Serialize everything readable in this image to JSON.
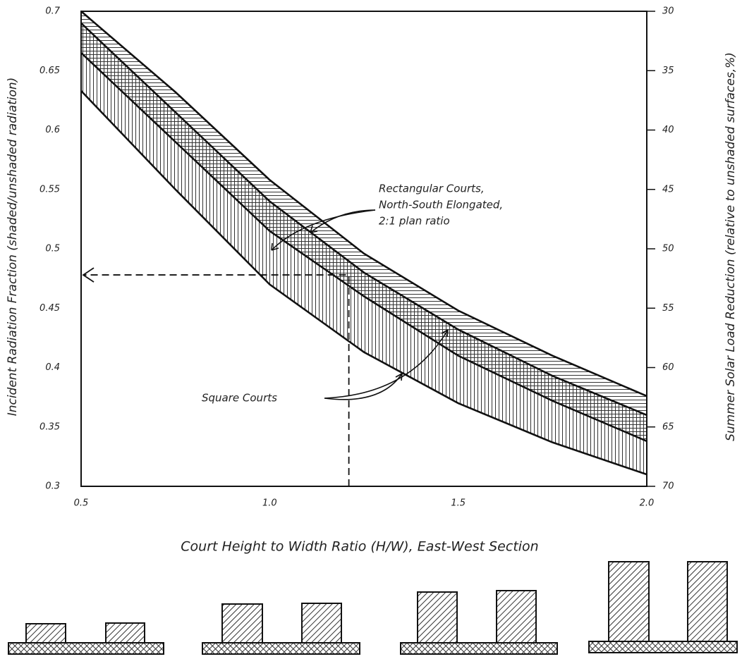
{
  "chart_data": {
    "type": "band",
    "y_label": "Incident Radiation Fraction (shaded/unshaded radiation)",
    "y2_label": "Summer Solar Load Reduction (relative to unshaded surfaces,%)",
    "x_label": "Court Height to Width Ratio (H/W), East-West Section",
    "x": [
      0.5,
      0.75,
      1.0,
      1.25,
      1.5,
      1.75,
      2.0
    ],
    "xlim": [
      0.5,
      2.0
    ],
    "xticks": [
      0.5,
      {
        "value": 1,
        "label": "1.0"
      },
      1.5,
      {
        "value": 2,
        "label": "2.0"
      }
    ],
    "ylim": [
      0.3,
      0.7
    ],
    "yticks": [
      0.3,
      0.35,
      0.4,
      0.45,
      0.5,
      0.55,
      0.6,
      0.65,
      0.7
    ],
    "y2lim": [
      70,
      30
    ],
    "y2ticks": [
      30,
      35,
      40,
      45,
      50,
      55,
      60,
      65,
      70
    ],
    "grid": true,
    "bands": [
      {
        "label": [
          "Rectangular Courts,",
          "North-South Elongated,",
          "2:1 plan ratio"
        ],
        "hatch": "horizontal",
        "upper": [
          0.7,
          0.632,
          0.558,
          0.496,
          0.448,
          0.41,
          0.376
        ],
        "lower": [
          0.665,
          0.59,
          0.515,
          0.46,
          0.41,
          0.372,
          0.338
        ]
      },
      {
        "label": [
          "Square Courts"
        ],
        "hatch": "vertical",
        "upper": [
          0.69,
          0.615,
          0.54,
          0.48,
          0.432,
          0.393,
          0.36
        ],
        "lower": [
          0.633,
          0.55,
          0.47,
          0.413,
          0.37,
          0.337,
          0.31
        ]
      }
    ],
    "guide": {
      "x": 1.21,
      "y": 0.478
    }
  }
}
